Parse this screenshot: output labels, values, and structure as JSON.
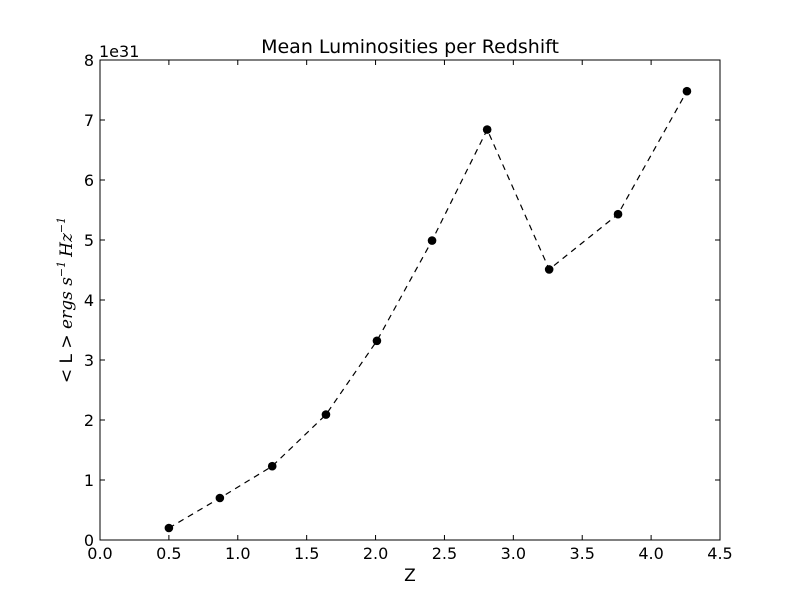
{
  "chart_data": {
    "type": "line",
    "title": "Mean Luminosities per Redshift",
    "xlabel": "Z",
    "ylabel": {
      "prefix": "< L > ",
      "math": "ergs s",
      "exp1": "−1",
      "unit": "Hz",
      "exp2": "−1"
    },
    "y_offset_label": "1e31",
    "y_multiplier": 1e+31,
    "xlim": [
      0.0,
      4.5
    ],
    "ylim": [
      0,
      8
    ],
    "xticks": [
      "0.0",
      "0.5",
      "1.0",
      "1.5",
      "2.0",
      "2.5",
      "3.0",
      "3.5",
      "4.0",
      "4.5"
    ],
    "yticks": [
      "0",
      "1",
      "2",
      "3",
      "4",
      "5",
      "6",
      "7",
      "8"
    ],
    "grid": false,
    "line_style": "dashed",
    "marker": "circle",
    "color": "#000000",
    "series": [
      {
        "x": [
          0.5,
          0.87,
          1.25,
          1.64,
          2.01,
          2.41,
          2.81,
          3.26,
          3.76,
          4.26
        ],
        "y": [
          0.2,
          0.7,
          1.23,
          2.09,
          3.32,
          4.99,
          6.84,
          4.51,
          5.43,
          7.48
        ]
      }
    ]
  }
}
